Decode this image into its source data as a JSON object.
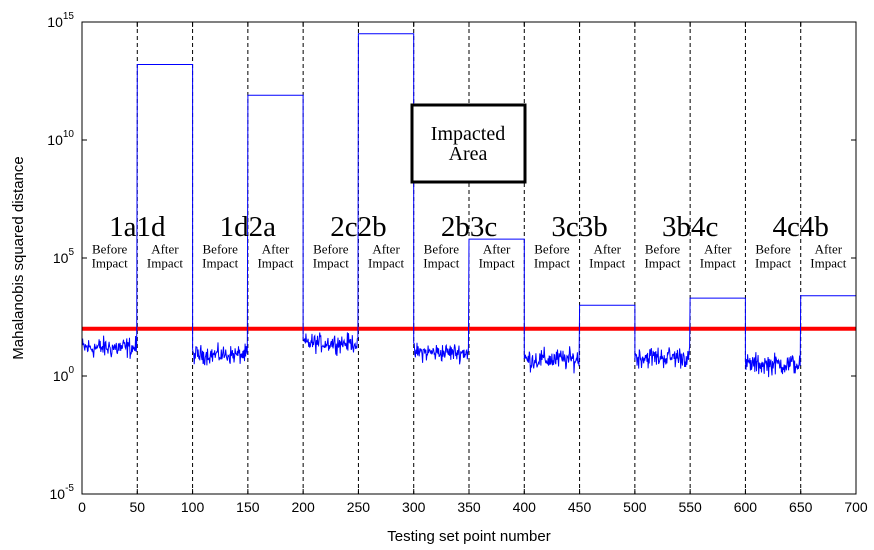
{
  "chart_data": {
    "type": "line",
    "title": "",
    "xlabel": "Testing set point number",
    "ylabel": "Mahalanobis squared distance",
    "xlim": [
      0,
      700
    ],
    "ylim_log10": [
      -5,
      15
    ],
    "yscale": "log",
    "grid": false,
    "x_ticks": [
      "0",
      "50",
      "100",
      "150",
      "200",
      "250",
      "300",
      "350",
      "400",
      "450",
      "500",
      "550",
      "600",
      "650",
      "700"
    ],
    "y_ticks": [
      {
        "base": "10",
        "exp": "-5",
        "log10": -5
      },
      {
        "base": "10",
        "exp": "0",
        "log10": 0
      },
      {
        "base": "10",
        "exp": "5",
        "log10": 5
      },
      {
        "base": "10",
        "exp": "10",
        "log10": 10
      },
      {
        "base": "10",
        "exp": "15",
        "log10": 15
      }
    ],
    "dashed_separators_x": [
      50,
      100,
      150,
      200,
      250,
      300,
      350,
      400,
      450,
      500,
      550,
      600,
      650
    ],
    "threshold": {
      "log10_value": 2.0,
      "color": "#ff0000"
    },
    "series_color": "#0000ff",
    "segments": [
      {
        "x0": 0,
        "x1": 50,
        "state": "before",
        "mean_log10": 1.2,
        "noise": 0.35
      },
      {
        "x0": 50,
        "x1": 100,
        "state": "after",
        "level_log10": 13.2
      },
      {
        "x0": 100,
        "x1": 150,
        "state": "before",
        "mean_log10": 0.9,
        "noise": 0.3
      },
      {
        "x0": 150,
        "x1": 200,
        "state": "after",
        "level_log10": 11.9
      },
      {
        "x0": 200,
        "x1": 250,
        "state": "before",
        "mean_log10": 1.4,
        "noise": 0.3
      },
      {
        "x0": 250,
        "x1": 300,
        "state": "after",
        "level_log10": 14.5
      },
      {
        "x0": 300,
        "x1": 350,
        "state": "before",
        "mean_log10": 1.0,
        "noise": 0.3
      },
      {
        "x0": 350,
        "x1": 400,
        "state": "after",
        "level_log10": 5.8
      },
      {
        "x0": 400,
        "x1": 450,
        "state": "before",
        "mean_log10": 0.7,
        "noise": 0.35
      },
      {
        "x0": 450,
        "x1": 500,
        "state": "after",
        "level_log10": 3.0
      },
      {
        "x0": 500,
        "x1": 550,
        "state": "before",
        "mean_log10": 0.8,
        "noise": 0.35
      },
      {
        "x0": 550,
        "x1": 600,
        "state": "after",
        "level_log10": 3.3
      },
      {
        "x0": 600,
        "x1": 650,
        "state": "before",
        "mean_log10": 0.5,
        "noise": 0.35
      },
      {
        "x0": 650,
        "x1": 700,
        "state": "after",
        "level_log10": 3.4
      }
    ],
    "group_labels": [
      {
        "text": "1a1d",
        "x": 50
      },
      {
        "text": "1d2a",
        "x": 150
      },
      {
        "text": "2c2b",
        "x": 250
      },
      {
        "text": "2b3c",
        "x": 350
      },
      {
        "text": "3c3b",
        "x": 450
      },
      {
        "text": "3b4c",
        "x": 550
      },
      {
        "text": "4c4b",
        "x": 650
      }
    ],
    "before_label": [
      "Before",
      "Impact"
    ],
    "after_label": [
      "After",
      "Impact"
    ],
    "annotation_box": [
      "Impacted",
      "Area"
    ]
  }
}
